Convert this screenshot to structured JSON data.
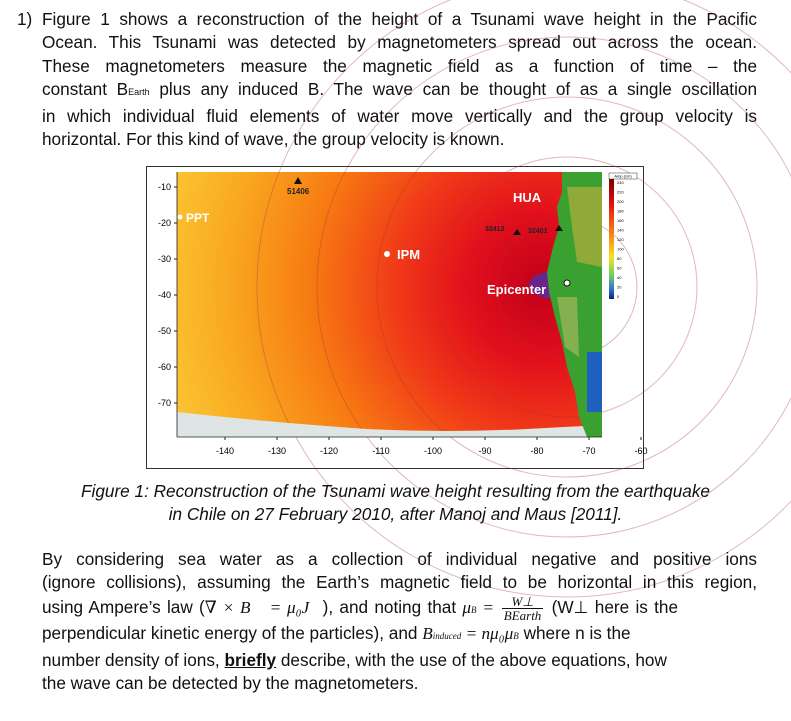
{
  "question": {
    "number": "1)",
    "intro_lines": [
      "Figure 1 shows a reconstruction of the height of a Tsunami wave height in the Pacific",
      "Ocean. This Tsunami was detected by magnetometers spread out across the ocean.",
      "These magnetometers measure the magnetic field as a function of time – the",
      "plus any induced B.  The wave can be thought of as a single oscillation",
      "in which individual fluid elements of water move vertically and the group velocity is",
      "horizontal. For this kind of wave, the group velocity is known."
    ],
    "constant_prefix": "constant B",
    "b_earth_sub": "Earth"
  },
  "figure": {
    "y_ticks": [
      "-10",
      "-20",
      "-30",
      "-40",
      "-50",
      "-60",
      "-70"
    ],
    "x_ticks": [
      "-140",
      "-130",
      "-120",
      "-110",
      "-100",
      "-90",
      "-80",
      "-70",
      "-60"
    ],
    "labels": {
      "buoy1": "51406",
      "ppt": "PPT",
      "hua": "HUA",
      "buoy2": "32412",
      "buoy3": "32401",
      "ipm": "IPM",
      "epicenter": "Epicenter"
    },
    "colorbar_title": "Amp (cm)",
    "colorbar_ticks": [
      "240",
      "220",
      "200",
      "180",
      "160",
      "140",
      "120",
      "100",
      "80",
      "60",
      "40",
      "20",
      "0"
    ]
  },
  "caption": {
    "line1": "Figure 1: Reconstruction of the Tsunami wave height resulting from the earthquake",
    "line2": "in Chile on 27 February 2010, after Manoj and Maus [2011]."
  },
  "part2": {
    "line1": "By considering sea water as a collection of individual negative and positive ions",
    "line2": "(ignore collisions), assuming the Earth’s magnetic field to be horizontal in this region,",
    "line3a": "using Ampere’s law (",
    "ampere_eq": "∇ × B⃗ = μ₀J⃗",
    "line3b": "), and noting that",
    "mu_b": "μ",
    "mu_b_sub": "B",
    "frac_num": "W⊥",
    "frac_den": "BEarth",
    "line3c": "(W⊥ here is the",
    "line4a": "perpendicular kinetic energy of the particles), and",
    "induced_eq": "B",
    "induced_sub": "induced",
    "induced_rhs": " = nμ₀μ",
    "induced_rhs_sub": "B",
    "line4b": " where n is the",
    "line5a": "number density of ions,",
    "briefly": "briefly",
    "line5b": "describe, with the use of the above equations, how",
    "line6": "the wave can be detected by the magnetometers."
  }
}
